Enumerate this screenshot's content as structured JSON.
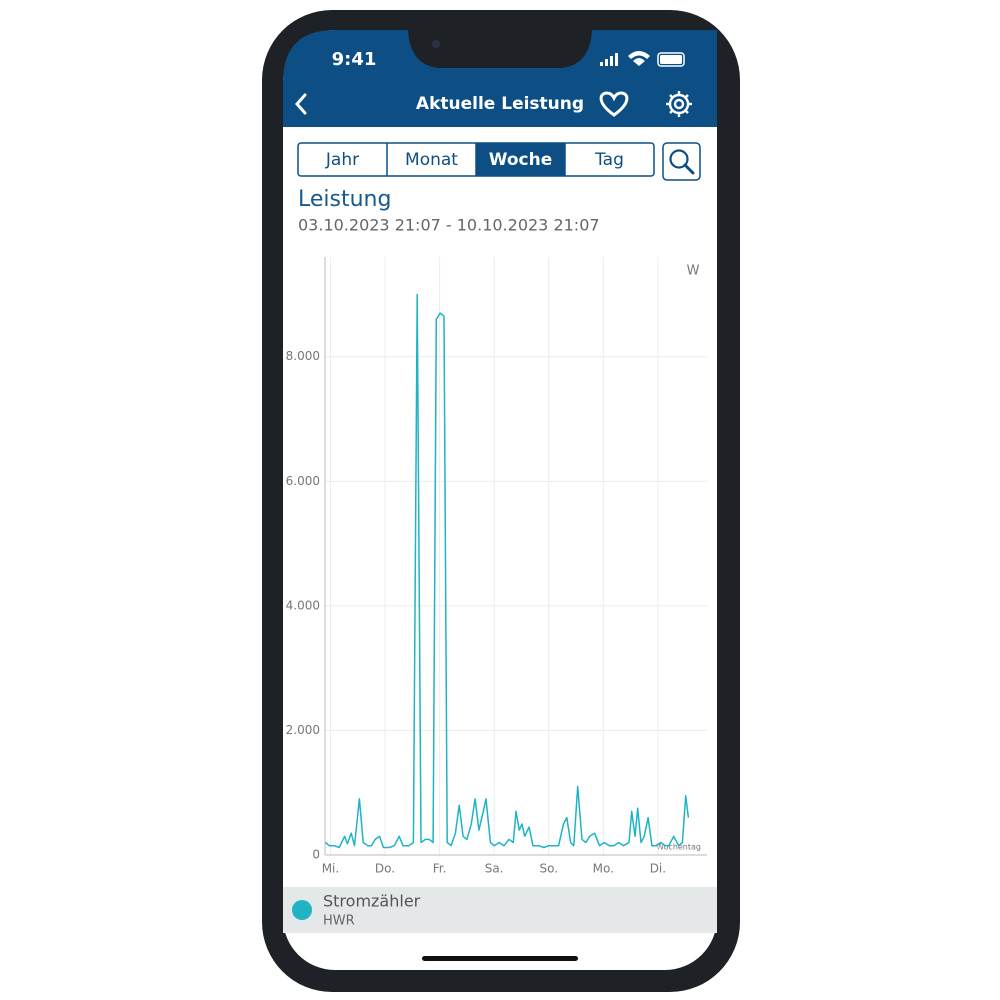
{
  "status_bar": {
    "time": "9:41"
  },
  "header": {
    "title": "Aktuelle Leistung"
  },
  "tabs": {
    "items": [
      "Jahr",
      "Monat",
      "Woche",
      "Tag"
    ],
    "active": 2
  },
  "chart_data": {
    "type": "line",
    "title": "Leistung",
    "subtitle": "03.10.2023 21:07 - 10.10.2023 21:07",
    "y_unit": "W",
    "x_label": "Wochentag",
    "xlim": [
      -0.1,
      6.9
    ],
    "xticks": [
      {
        "value": 0,
        "label": "Mi."
      },
      {
        "value": 1,
        "label": "Do."
      },
      {
        "value": 2,
        "label": "Fr."
      },
      {
        "value": 3,
        "label": "Sa."
      },
      {
        "value": 4,
        "label": "So."
      },
      {
        "value": 5,
        "label": "Mo."
      },
      {
        "value": 6,
        "label": "Di."
      }
    ],
    "ylim": [
      0,
      9600
    ],
    "yticks": [
      0,
      {
        "value": 2000,
        "label": "2.000"
      },
      {
        "value": 4000,
        "label": "4.000"
      },
      {
        "value": 6000,
        "label": "6.000"
      },
      {
        "value": 8000,
        "label": "8.000"
      }
    ],
    "grid": true,
    "x": [
      -0.09,
      -0.02,
      0.07,
      0.16,
      0.26,
      0.31,
      0.38,
      0.44,
      0.53,
      0.6,
      0.68,
      0.75,
      0.82,
      0.9,
      0.97,
      1.08,
      1.17,
      1.26,
      1.33,
      1.44,
      1.52,
      1.59,
      1.66,
      1.74,
      1.81,
      1.88,
      1.94,
      2.01,
      2.08,
      2.14,
      2.21,
      2.29,
      2.36,
      2.43,
      2.5,
      2.58,
      2.65,
      2.72,
      2.8,
      2.85,
      2.93,
      3.0,
      3.09,
      3.18,
      3.27,
      3.35,
      3.4,
      3.46,
      3.51,
      3.56,
      3.64,
      3.71,
      3.82,
      3.91,
      4.0,
      4.09,
      4.18,
      4.27,
      4.33,
      4.4,
      4.46,
      4.53,
      4.61,
      4.68,
      4.75,
      4.84,
      4.93,
      5.02,
      5.11,
      5.19,
      5.28,
      5.37,
      5.47,
      5.52,
      5.58,
      5.63,
      5.69,
      5.75,
      5.82,
      5.89,
      5.98,
      6.05,
      6.14,
      6.2,
      6.29,
      6.38,
      6.45,
      6.51,
      6.56
    ],
    "series": [
      {
        "name": "Stromzähler",
        "location": "HWR",
        "color": "#1fb3c4",
        "values": [
          200,
          150,
          150,
          120,
          300,
          180,
          350,
          150,
          900,
          200,
          150,
          150,
          250,
          300,
          120,
          120,
          150,
          300,
          150,
          150,
          200,
          9000,
          200,
          250,
          250,
          200,
          8600,
          8700,
          8650,
          200,
          150,
          350,
          800,
          300,
          250,
          500,
          900,
          400,
          700,
          900,
          200,
          150,
          200,
          150,
          250,
          200,
          700,
          400,
          500,
          300,
          450,
          150,
          150,
          120,
          150,
          150,
          150,
          500,
          600,
          200,
          150,
          1100,
          250,
          200,
          300,
          350,
          150,
          200,
          150,
          150,
          200,
          150,
          200,
          700,
          300,
          750,
          200,
          300,
          600,
          150,
          150,
          200,
          150,
          150,
          300,
          150,
          200,
          950,
          600
        ]
      }
    ]
  }
}
